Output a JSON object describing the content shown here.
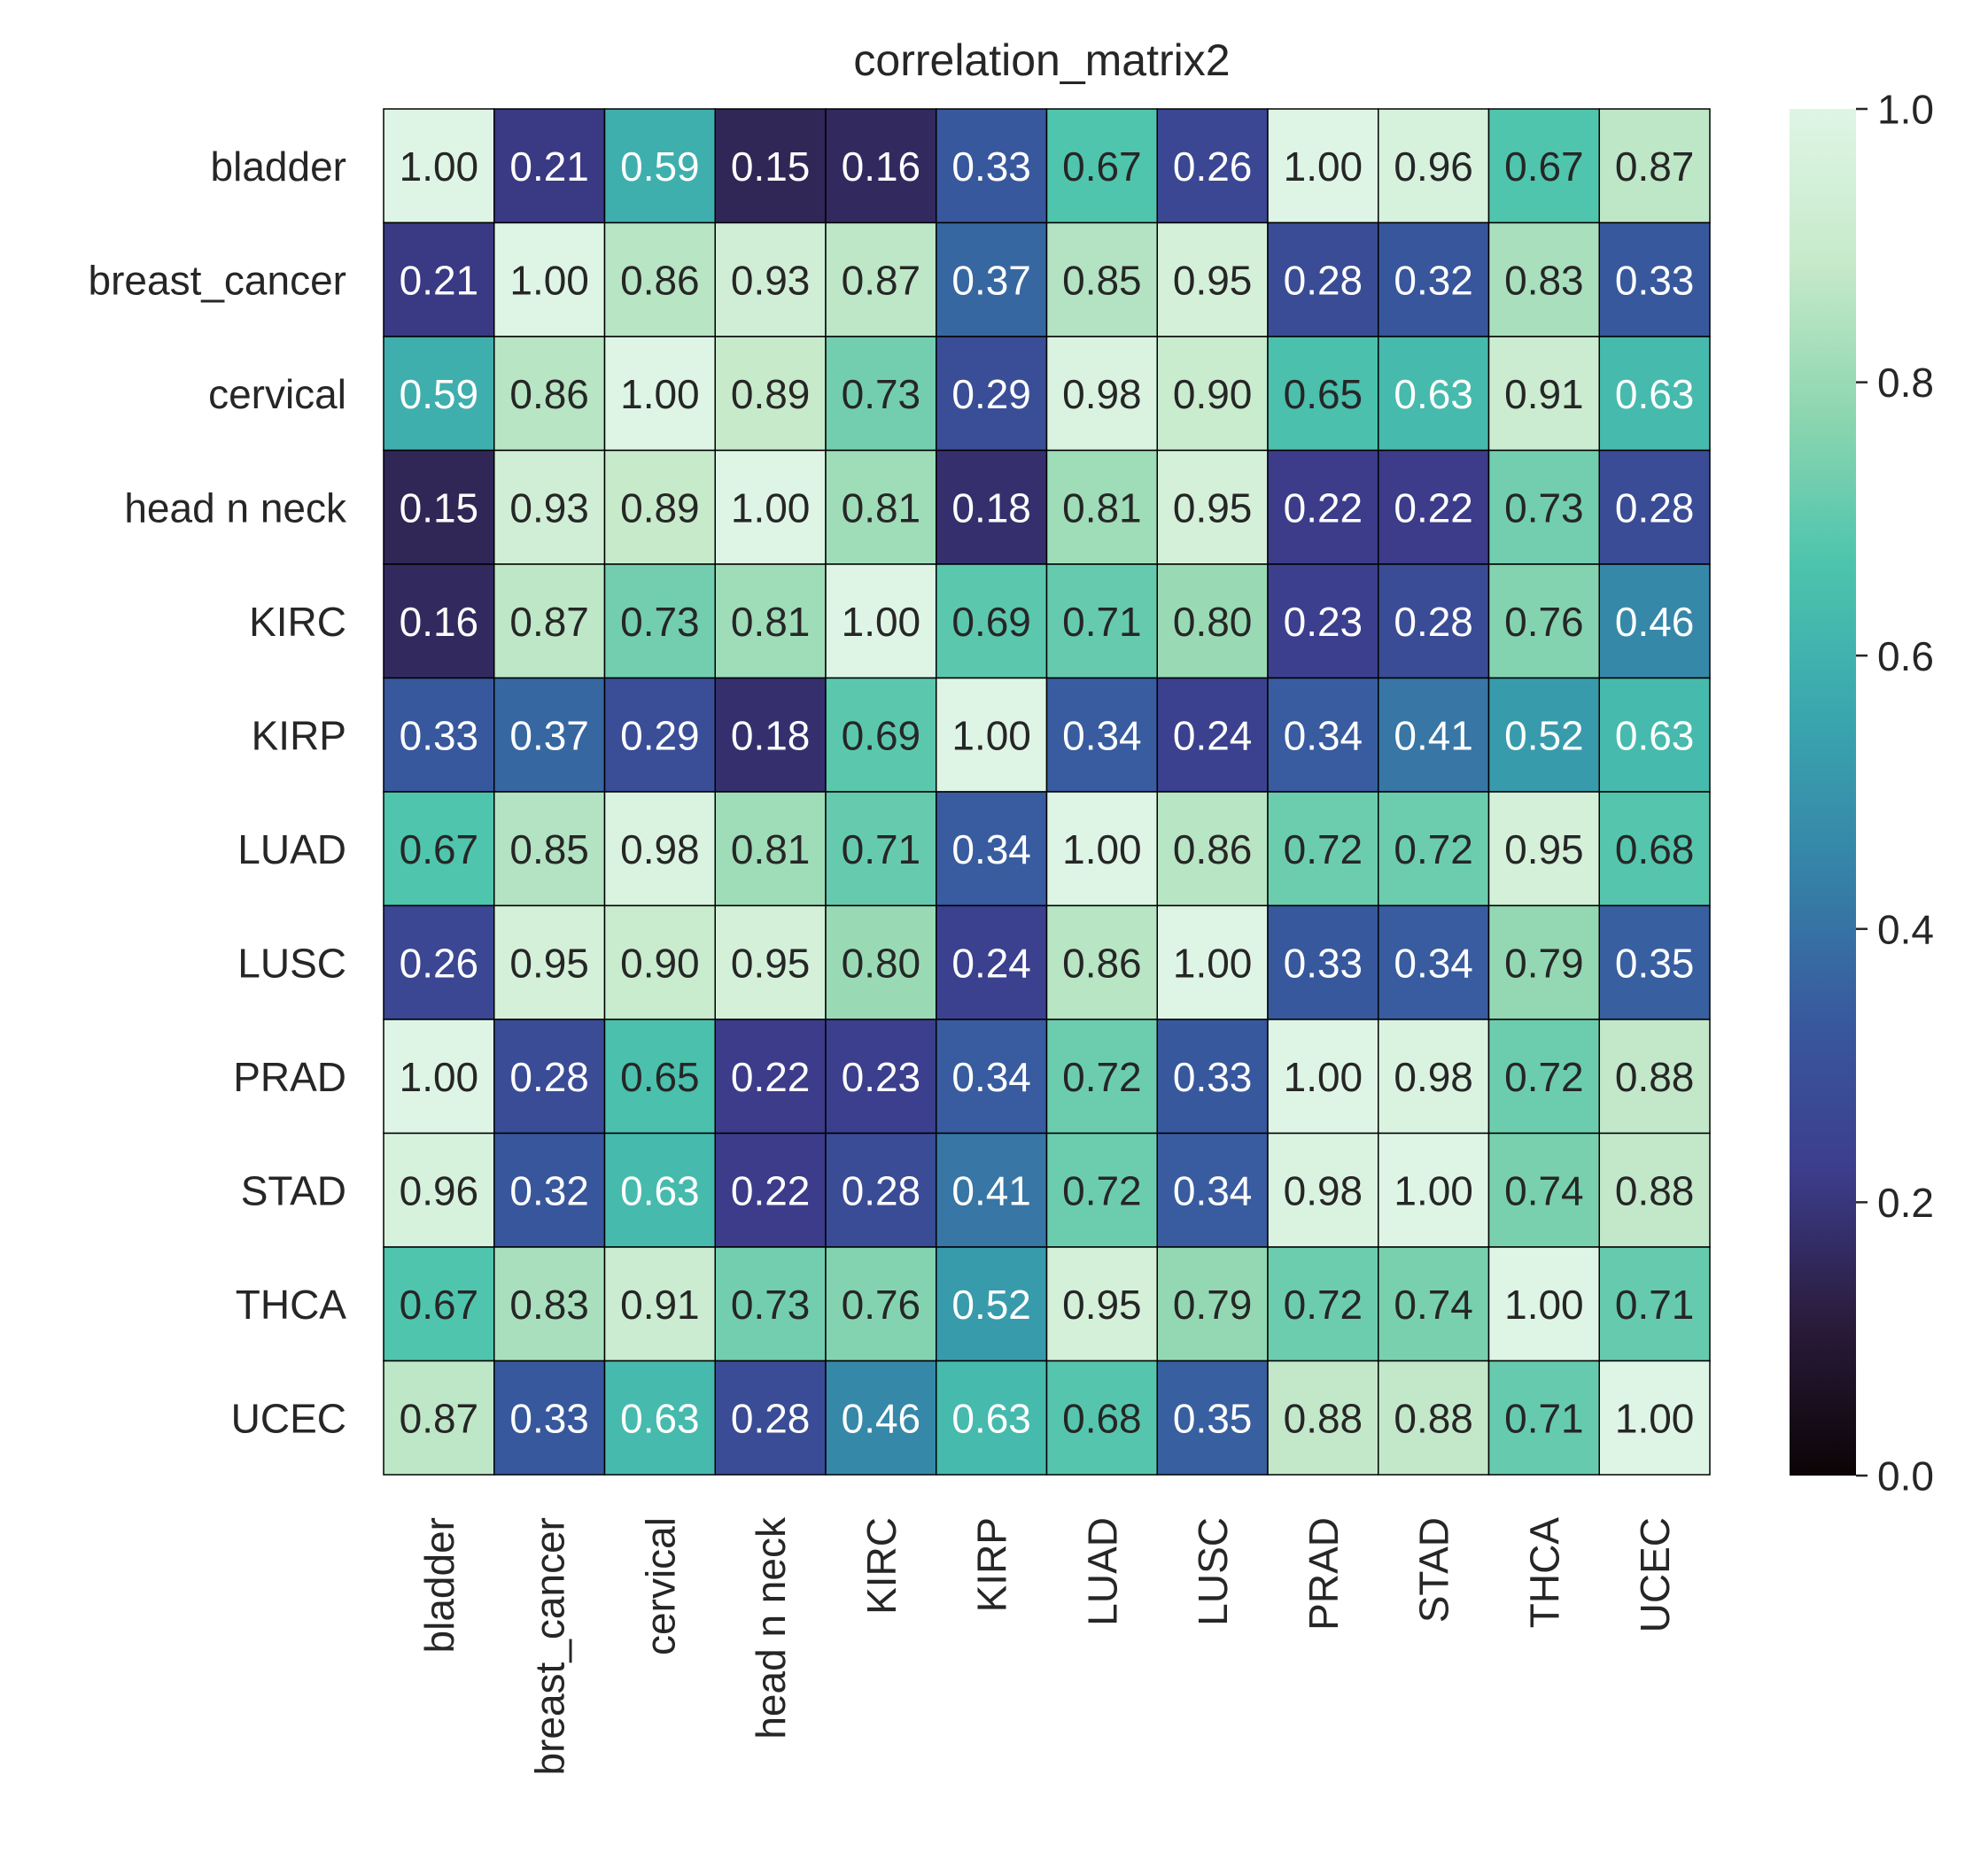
{
  "chart_data": {
    "type": "heatmap",
    "title": "correlation_matrix2",
    "xlabel": "",
    "ylabel": "",
    "rows": [
      "bladder",
      "breast_cancer",
      "cervical",
      "head n neck",
      "KIRC",
      "KIRP",
      "LUAD",
      "LUSC",
      "PRAD",
      "STAD",
      "THCA",
      "UCEC"
    ],
    "columns": [
      "bladder",
      "breast_cancer",
      "cervical",
      "head n neck",
      "KIRC",
      "KIRP",
      "LUAD",
      "LUSC",
      "PRAD",
      "STAD",
      "THCA",
      "UCEC"
    ],
    "values": [
      [
        1.0,
        0.21,
        0.59,
        0.15,
        0.16,
        0.33,
        0.67,
        0.26,
        1.0,
        0.96,
        0.67,
        0.87
      ],
      [
        0.21,
        1.0,
        0.86,
        0.93,
        0.87,
        0.37,
        0.85,
        0.95,
        0.28,
        0.32,
        0.83,
        0.33
      ],
      [
        0.59,
        0.86,
        1.0,
        0.89,
        0.73,
        0.29,
        0.98,
        0.9,
        0.65,
        0.63,
        0.91,
        0.63
      ],
      [
        0.15,
        0.93,
        0.89,
        1.0,
        0.81,
        0.18,
        0.81,
        0.95,
        0.22,
        0.22,
        0.73,
        0.28
      ],
      [
        0.16,
        0.87,
        0.73,
        0.81,
        1.0,
        0.69,
        0.71,
        0.8,
        0.23,
        0.28,
        0.76,
        0.46
      ],
      [
        0.33,
        0.37,
        0.29,
        0.18,
        0.69,
        1.0,
        0.34,
        0.24,
        0.34,
        0.41,
        0.52,
        0.63
      ],
      [
        0.67,
        0.85,
        0.98,
        0.81,
        0.71,
        0.34,
        1.0,
        0.86,
        0.72,
        0.72,
        0.95,
        0.68
      ],
      [
        0.26,
        0.95,
        0.9,
        0.95,
        0.8,
        0.24,
        0.86,
        1.0,
        0.33,
        0.34,
        0.79,
        0.35
      ],
      [
        1.0,
        0.28,
        0.65,
        0.22,
        0.23,
        0.34,
        0.72,
        0.33,
        1.0,
        0.98,
        0.72,
        0.88
      ],
      [
        0.96,
        0.32,
        0.63,
        0.22,
        0.28,
        0.41,
        0.72,
        0.34,
        0.98,
        1.0,
        0.74,
        0.88
      ],
      [
        0.67,
        0.83,
        0.91,
        0.73,
        0.76,
        0.52,
        0.95,
        0.79,
        0.72,
        0.74,
        1.0,
        0.71
      ],
      [
        0.87,
        0.33,
        0.63,
        0.28,
        0.46,
        0.63,
        0.68,
        0.35,
        0.88,
        0.88,
        0.71,
        1.0
      ]
    ],
    "value_format": "0.00",
    "colorbar": {
      "range": [
        0.0,
        1.0
      ],
      "ticks": [
        0.0,
        0.2,
        0.4,
        0.6,
        0.8,
        1.0
      ],
      "tick_labels": [
        "0.0",
        "0.2",
        "0.4",
        "0.6",
        "0.8",
        "1.0"
      ],
      "colormap": "mako",
      "stops": [
        "#0b0405",
        "#2a1b3b",
        "#3c3d8c",
        "#38599e",
        "#3683a8",
        "#39a6ae",
        "#4dc4ad",
        "#8ed6b0",
        "#c7eacb",
        "#def5e5"
      ]
    },
    "grid": false,
    "legend": "colorbar-right",
    "cell_border_color": "#000000",
    "text_color_dark": "#262626",
    "text_color_light": "#ffffff"
  }
}
